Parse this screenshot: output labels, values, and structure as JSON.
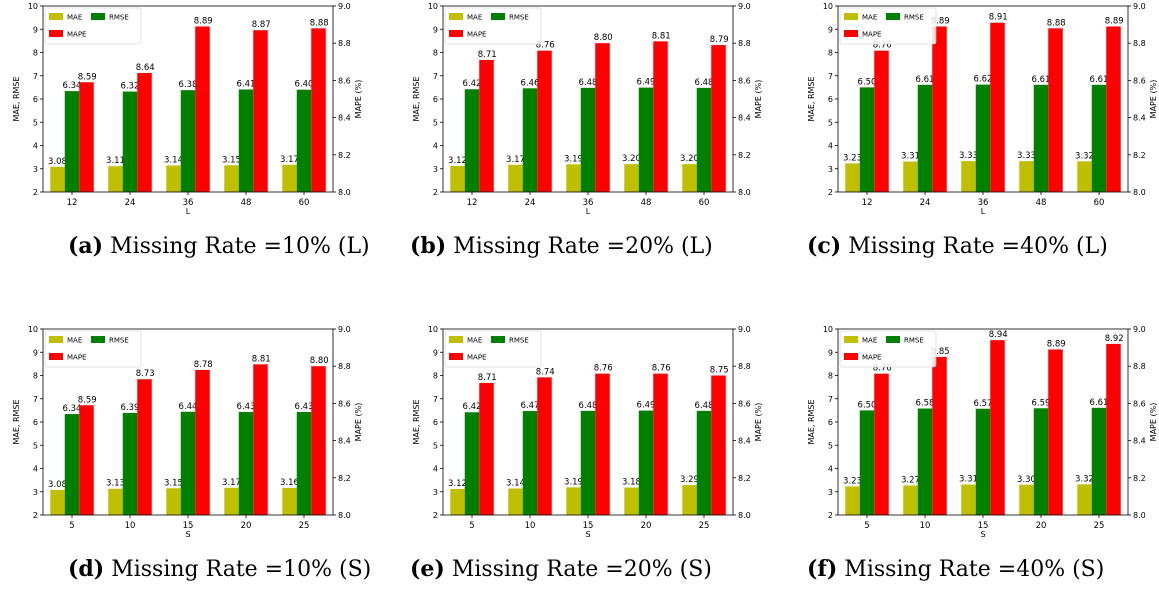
{
  "colors": {
    "mae": "#bfbf00",
    "rmse": "#008000",
    "mape": "#ff0000"
  },
  "chart_data": [
    {
      "panel_label": "(a)",
      "caption": "Missing Rate =10% (L)",
      "type": "bar",
      "xlabel": "L",
      "ylabel": "MAE, RMSE",
      "y2label": "MAPE (%)",
      "ylim": [
        2,
        10
      ],
      "y2lim": [
        8.0,
        9.0
      ],
      "yticks": [
        "2",
        "3",
        "4",
        "5",
        "6",
        "7",
        "8",
        "9",
        "10"
      ],
      "y2ticks": [
        "8.0",
        "8.2",
        "8.4",
        "8.6",
        "8.8",
        "9.0"
      ],
      "categories": [
        "12",
        "24",
        "36",
        "48",
        "60"
      ],
      "legend": [
        "MAE",
        "RMSE",
        "MAPE"
      ],
      "series": [
        {
          "name": "MAE",
          "values": [
            3.08,
            3.11,
            3.14,
            3.15,
            3.17
          ],
          "labels": [
            "3.08",
            "3.11",
            "3.14",
            "3.15",
            "3.17"
          ]
        },
        {
          "name": "RMSE",
          "values": [
            6.34,
            6.32,
            6.38,
            6.41,
            6.4
          ],
          "labels": [
            "6.34",
            "6.32",
            "6.38",
            "6.41",
            "6.40"
          ]
        },
        {
          "name": "MAPE",
          "axis": "right",
          "values": [
            8.59,
            8.64,
            8.89,
            8.87,
            8.88
          ],
          "labels": [
            "8.59",
            "8.64",
            "8.89",
            "8.87",
            "8.88"
          ]
        }
      ]
    },
    {
      "panel_label": "(b)",
      "caption": "Missing Rate =20% (L)",
      "type": "bar",
      "xlabel": "L",
      "ylabel": "MAE, RMSE",
      "y2label": "MAPE (%)",
      "ylim": [
        2,
        10
      ],
      "y2lim": [
        8.0,
        9.0
      ],
      "yticks": [
        "2",
        "3",
        "4",
        "5",
        "6",
        "7",
        "8",
        "9",
        "10"
      ],
      "y2ticks": [
        "8.0",
        "8.2",
        "8.4",
        "8.6",
        "8.8",
        "9.0"
      ],
      "categories": [
        "12",
        "24",
        "36",
        "48",
        "60"
      ],
      "legend": [
        "MAE",
        "RMSE",
        "MAPE"
      ],
      "series": [
        {
          "name": "MAE",
          "values": [
            3.12,
            3.17,
            3.19,
            3.2,
            3.2
          ],
          "labels": [
            "3.12",
            "3.17",
            "3.19",
            "3.20",
            "3.20"
          ]
        },
        {
          "name": "RMSE",
          "values": [
            6.42,
            6.46,
            6.48,
            6.49,
            6.48
          ],
          "labels": [
            "6.42",
            "6.46",
            "6.48",
            "6.49",
            "6.48"
          ]
        },
        {
          "name": "MAPE",
          "axis": "right",
          "values": [
            8.71,
            8.76,
            8.8,
            8.81,
            8.79
          ],
          "labels": [
            "8.71",
            "8.76",
            "8.80",
            "8.81",
            "8.79"
          ]
        }
      ]
    },
    {
      "panel_label": "(c)",
      "caption": "Missing Rate =40% (L)",
      "type": "bar",
      "xlabel": "L",
      "ylabel": "MAE, RMSE",
      "y2label": "MAPE (%)",
      "ylim": [
        2,
        10
      ],
      "y2lim": [
        8.0,
        9.0
      ],
      "yticks": [
        "2",
        "3",
        "4",
        "5",
        "6",
        "7",
        "8",
        "9",
        "10"
      ],
      "y2ticks": [
        "8.0",
        "8.2",
        "8.4",
        "8.6",
        "8.8",
        "9.0"
      ],
      "categories": [
        "12",
        "24",
        "36",
        "48",
        "60"
      ],
      "legend": [
        "MAE",
        "RMSE",
        "MAPE"
      ],
      "series": [
        {
          "name": "MAE",
          "values": [
            3.23,
            3.31,
            3.33,
            3.33,
            3.32
          ],
          "labels": [
            "3.23",
            "3.31",
            "3.33",
            "3.33",
            "3.32"
          ]
        },
        {
          "name": "RMSE",
          "values": [
            6.5,
            6.61,
            6.62,
            6.61,
            6.61
          ],
          "labels": [
            "6.50",
            "6.61",
            "6.62",
            "6.61",
            "6.61"
          ]
        },
        {
          "name": "MAPE",
          "axis": "right",
          "values": [
            8.76,
            8.89,
            8.91,
            8.88,
            8.89
          ],
          "labels": [
            "8.76",
            "8.89",
            "8.91",
            "8.88",
            "8.89"
          ]
        }
      ]
    },
    {
      "panel_label": "(d)",
      "caption": "Missing Rate =10% (S)",
      "type": "bar",
      "xlabel": "S",
      "ylabel": "MAE, RMSE",
      "y2label": "MAPE (%)",
      "ylim": [
        2,
        10
      ],
      "y2lim": [
        8.0,
        9.0
      ],
      "yticks": [
        "2",
        "3",
        "4",
        "5",
        "6",
        "7",
        "8",
        "9",
        "10"
      ],
      "y2ticks": [
        "8.0",
        "8.2",
        "8.4",
        "8.6",
        "8.8",
        "9.0"
      ],
      "categories": [
        "5",
        "10",
        "15",
        "20",
        "25"
      ],
      "legend": [
        "MAE",
        "RMSE",
        "MAPE"
      ],
      "series": [
        {
          "name": "MAE",
          "values": [
            3.08,
            3.13,
            3.15,
            3.17,
            3.16
          ],
          "labels": [
            "3.08",
            "3.13",
            "3.15",
            "3.17",
            "3.16"
          ]
        },
        {
          "name": "RMSE",
          "values": [
            6.34,
            6.39,
            6.44,
            6.43,
            6.43
          ],
          "labels": [
            "6.34",
            "6.39",
            "6.44",
            "6.43",
            "6.43"
          ]
        },
        {
          "name": "MAPE",
          "axis": "right",
          "values": [
            8.59,
            8.73,
            8.78,
            8.81,
            8.8
          ],
          "labels": [
            "8.59",
            "8.73",
            "8.78",
            "8.81",
            "8.80"
          ]
        }
      ]
    },
    {
      "panel_label": "(e)",
      "caption": "Missing Rate =20% (S)",
      "type": "bar",
      "xlabel": "S",
      "ylabel": "MAE, RMSE",
      "y2label": "MAPE (%)",
      "ylim": [
        2,
        10
      ],
      "y2lim": [
        8.0,
        9.0
      ],
      "yticks": [
        "2",
        "3",
        "4",
        "5",
        "6",
        "7",
        "8",
        "9",
        "10"
      ],
      "y2ticks": [
        "8.0",
        "8.2",
        "8.4",
        "8.6",
        "8.8",
        "9.0"
      ],
      "categories": [
        "5",
        "10",
        "15",
        "20",
        "25"
      ],
      "legend": [
        "MAE",
        "RMSE",
        "MAPE"
      ],
      "series": [
        {
          "name": "MAE",
          "values": [
            3.12,
            3.14,
            3.19,
            3.18,
            3.29
          ],
          "labels": [
            "3.12",
            "3.14",
            "3.19",
            "3.18",
            "3.29"
          ]
        },
        {
          "name": "RMSE",
          "values": [
            6.42,
            6.47,
            6.48,
            6.49,
            6.48
          ],
          "labels": [
            "6.42",
            "6.47",
            "6.48",
            "6.49",
            "6.48"
          ]
        },
        {
          "name": "MAPE",
          "axis": "right",
          "values": [
            8.71,
            8.74,
            8.76,
            8.76,
            8.75
          ],
          "labels": [
            "8.71",
            "8.74",
            "8.76",
            "8.76",
            "8.75"
          ]
        }
      ]
    },
    {
      "panel_label": "(f)",
      "caption": "Missing Rate =40% (S)",
      "type": "bar",
      "xlabel": "S",
      "ylabel": "MAE, RMSE",
      "y2label": "MAPE (%)",
      "ylim": [
        2,
        10
      ],
      "y2lim": [
        8.0,
        9.0
      ],
      "yticks": [
        "2",
        "3",
        "4",
        "5",
        "6",
        "7",
        "8",
        "9",
        "10"
      ],
      "y2ticks": [
        "8.0",
        "8.2",
        "8.4",
        "8.6",
        "8.8",
        "9.0"
      ],
      "categories": [
        "5",
        "10",
        "15",
        "20",
        "25"
      ],
      "legend": [
        "MAE",
        "RMSE",
        "MAPE"
      ],
      "series": [
        {
          "name": "MAE",
          "values": [
            3.23,
            3.27,
            3.31,
            3.3,
            3.32
          ],
          "labels": [
            "3.23",
            "3.27",
            "3.31",
            "3.30",
            "3.32"
          ]
        },
        {
          "name": "RMSE",
          "values": [
            6.5,
            6.58,
            6.57,
            6.59,
            6.61
          ],
          "labels": [
            "6.50",
            "6.58",
            "6.57",
            "6.59",
            "6.61"
          ]
        },
        {
          "name": "MAPE",
          "axis": "right",
          "values": [
            8.76,
            8.85,
            8.94,
            8.89,
            8.92
          ],
          "labels": [
            "8.76",
            "8.85",
            "8.94",
            "8.89",
            "8.92"
          ]
        }
      ]
    }
  ]
}
